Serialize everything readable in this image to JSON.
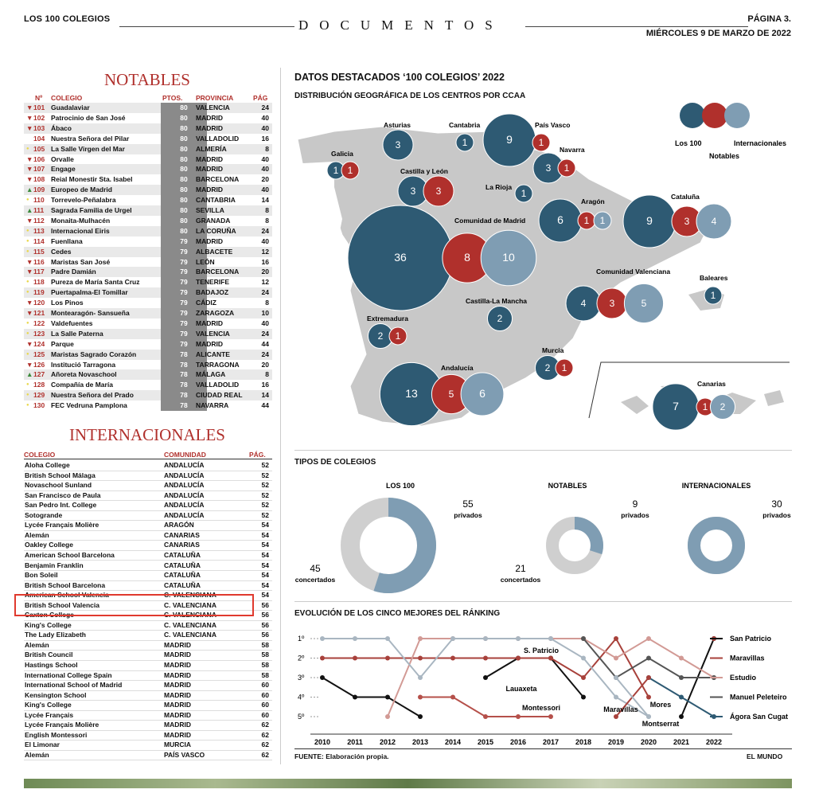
{
  "header": {
    "left": "LOS 100 COLEGIOS",
    "center": "DOCUMENTOS",
    "page": "PÁGINA 3.",
    "date": "MIÉRCOLES 9 DE MARZO DE 2022"
  },
  "notables": {
    "title": "NOTABLES",
    "cols": [
      "Nº",
      "COLEGIO",
      "PTOS.",
      "PROVINCIA",
      "PÁG"
    ],
    "rows": [
      {
        "arrow": "down",
        "n": "101",
        "name": "Guadalaviar",
        "pts": "80",
        "prov": "VALENCIA",
        "pag": "24"
      },
      {
        "arrow": "down",
        "n": "102",
        "name": "Patrocinio de San José",
        "pts": "80",
        "prov": "MADRID",
        "pag": "40"
      },
      {
        "arrow": "down",
        "n": "103",
        "name": "Ábaco",
        "pts": "80",
        "prov": "MADRID",
        "pag": "40"
      },
      {
        "arrow": "",
        "n": "104",
        "name": "Nuestra Señora del Pilar",
        "pts": "80",
        "prov": "VALLADOLID",
        "pag": "16"
      },
      {
        "arrow": "dot",
        "n": "105",
        "name": "La Salle Virgen del Mar",
        "pts": "80",
        "prov": "ALMERÍA",
        "pag": "8"
      },
      {
        "arrow": "down",
        "n": "106",
        "name": "Orvalle",
        "pts": "80",
        "prov": "MADRID",
        "pag": "40"
      },
      {
        "arrow": "down",
        "n": "107",
        "name": "Engage",
        "pts": "80",
        "prov": "MADRID",
        "pag": "40"
      },
      {
        "arrow": "down",
        "n": "108",
        "name": "Reial Monestir Sta. Isabel",
        "pts": "80",
        "prov": "BARCELONA",
        "pag": "20"
      },
      {
        "arrow": "up",
        "n": "109",
        "name": "Europeo de Madrid",
        "pts": "80",
        "prov": "MADRID",
        "pag": "40"
      },
      {
        "arrow": "dot",
        "n": "110",
        "name": "Torrevelo-Peñalabra",
        "pts": "80",
        "prov": "CANTABRIA",
        "pag": "14"
      },
      {
        "arrow": "up",
        "n": "111",
        "name": "Sagrada Familia de Urgel",
        "pts": "80",
        "prov": "SEVILLA",
        "pag": "8"
      },
      {
        "arrow": "down",
        "n": "112",
        "name": "Monaita-Mulhacén",
        "pts": "80",
        "prov": "GRANADA",
        "pag": "8"
      },
      {
        "arrow": "dot",
        "n": "113",
        "name": "Internacional Eiris",
        "pts": "80",
        "prov": "LA CORUÑA",
        "pag": "24"
      },
      {
        "arrow": "dot",
        "n": "114",
        "name": "Fuenllana",
        "pts": "79",
        "prov": "MADRID",
        "pag": "40"
      },
      {
        "arrow": "dot",
        "n": "115",
        "name": "Cedes",
        "pts": "79",
        "prov": "ALBACETE",
        "pag": "12"
      },
      {
        "arrow": "down",
        "n": "116",
        "name": "Maristas San José",
        "pts": "79",
        "prov": "LEÓN",
        "pag": "16"
      },
      {
        "arrow": "down",
        "n": "117",
        "name": "Padre Damián",
        "pts": "79",
        "prov": "BARCELONA",
        "pag": "20"
      },
      {
        "arrow": "dot",
        "n": "118",
        "name": "Pureza de María Santa Cruz",
        "pts": "79",
        "prov": "TENERIFE",
        "pag": "12"
      },
      {
        "arrow": "dot",
        "n": "119",
        "name": "Puertapalma-El Tomillar",
        "pts": "79",
        "prov": "BADAJOZ",
        "pag": "24"
      },
      {
        "arrow": "down",
        "n": "120",
        "name": "Los Pinos",
        "pts": "79",
        "prov": "CÁDIZ",
        "pag": "8"
      },
      {
        "arrow": "down",
        "n": "121",
        "name": "Montearagón- Sansueña",
        "pts": "79",
        "prov": "ZARAGOZA",
        "pag": "10"
      },
      {
        "arrow": "dot",
        "n": "122",
        "name": "Valdefuentes",
        "pts": "79",
        "prov": "MADRID",
        "pag": "40"
      },
      {
        "arrow": "dot",
        "n": "123",
        "name": "La Salle Paterna",
        "pts": "79",
        "prov": "VALENCIA",
        "pag": "24"
      },
      {
        "arrow": "down",
        "n": "124",
        "name": "Parque",
        "pts": "79",
        "prov": "MADRID",
        "pag": "44"
      },
      {
        "arrow": "dot",
        "n": "125",
        "name": "Maristas Sagrado Corazón",
        "pts": "78",
        "prov": "ALICANTE",
        "pag": "24"
      },
      {
        "arrow": "down",
        "n": "126",
        "name": "Institució Tarragona",
        "pts": "78",
        "prov": "TARRAGONA",
        "pag": "20"
      },
      {
        "arrow": "up",
        "n": "127",
        "name": "Añoreta Novaschool",
        "pts": "78",
        "prov": "MÁLAGA",
        "pag": "8"
      },
      {
        "arrow": "dot",
        "n": "128",
        "name": "Compañía de María",
        "pts": "78",
        "prov": "VALLADOLID",
        "pag": "16"
      },
      {
        "arrow": "dot",
        "n": "129",
        "name": "Nuestra Señora del Prado",
        "pts": "78",
        "prov": "CIUDAD REAL",
        "pag": "14"
      },
      {
        "arrow": "dot",
        "n": "130",
        "name": "FEC Vedruna Pamplona",
        "pts": "78",
        "prov": "NAVARRA",
        "pag": "44"
      }
    ]
  },
  "internacionales": {
    "title": "INTERNACIONALES",
    "cols": [
      "COLEGIO",
      "COMUNIDAD",
      "PÁG."
    ],
    "rows": [
      {
        "name": "Aloha College",
        "com": "ANDALUCÍA",
        "pag": "52"
      },
      {
        "name": "British School Málaga",
        "com": "ANDALUCÍA",
        "pag": "52"
      },
      {
        "name": "Novaschool Sunland",
        "com": "ANDALUCÍA",
        "pag": "52"
      },
      {
        "name": "San Francisco de Paula",
        "com": "ANDALUCÍA",
        "pag": "52"
      },
      {
        "name": "San Pedro Int. College",
        "com": "ANDALUCÍA",
        "pag": "52"
      },
      {
        "name": "Sotogrande",
        "com": "ANDALUCÍA",
        "pag": "52"
      },
      {
        "name": "Lycée Français Molière",
        "com": "ARAGÓN",
        "pag": "54"
      },
      {
        "name": "Alemán",
        "com": "CANARIAS",
        "pag": "54"
      },
      {
        "name": "Oakley College",
        "com": "CANARIAS",
        "pag": "54"
      },
      {
        "name": "American School Barcelona",
        "com": "CATALUÑA",
        "pag": "54"
      },
      {
        "name": "Benjamin Franklin",
        "com": "CATALUÑA",
        "pag": "54"
      },
      {
        "name": "Bon Soleil",
        "com": "CATALUÑA",
        "pag": "54"
      },
      {
        "name": "British School Barcelona",
        "com": "CATALUÑA",
        "pag": "54"
      },
      {
        "name": "American School Valencia",
        "com": "C. VALENCIANA",
        "pag": "54"
      },
      {
        "name": "British School Valencia",
        "com": "C. VALENCIANA",
        "pag": "56"
      },
      {
        "name": "Caxton College",
        "com": "C. VALENCIANA",
        "pag": "56"
      },
      {
        "name": "King's College",
        "com": "C. VALENCIANA",
        "pag": "56"
      },
      {
        "name": "The Lady Elizabeth",
        "com": "C. VALENCIANA",
        "pag": "56"
      },
      {
        "name": "Alemán",
        "com": "MADRID",
        "pag": "58"
      },
      {
        "name": "British Council",
        "com": "MADRID",
        "pag": "58"
      },
      {
        "name": "Hastings School",
        "com": "MADRID",
        "pag": "58"
      },
      {
        "name": "International College Spain",
        "com": "MADRID",
        "pag": "58"
      },
      {
        "name": "International School of Madrid",
        "com": "MADRID",
        "pag": "60"
      },
      {
        "name": "Kensington School",
        "com": "MADRID",
        "pag": "60"
      },
      {
        "name": "King's College",
        "com": "MADRID",
        "pag": "60"
      },
      {
        "name": "Lycée Français",
        "com": "MADRID",
        "pag": "60"
      },
      {
        "name": "Lycée Français Molière",
        "com": "MADRID",
        "pag": "62"
      },
      {
        "name": "English Montessori",
        "com": "MADRID",
        "pag": "62"
      },
      {
        "name": "El Limonar",
        "com": "MURCIA",
        "pag": "62"
      },
      {
        "name": "Alemán",
        "com": "PAÍS VASCO",
        "pag": "62"
      }
    ]
  },
  "right": {
    "title": "DATOS DESTACADOS ‘100 COLEGIOS’ 2022",
    "map_title": "DISTRIBUCIÓN GEOGRÁFICA DE LOS CENTROS POR CCAA",
    "legend": {
      "los100": "Los 100",
      "notables": "Notables",
      "internacionales": "Internacionales"
    },
    "colors": {
      "los100": "#2e5a73",
      "notables": "#b0302c",
      "internacionales": "#7f9db3",
      "land": "#c8c8c8"
    },
    "regions": [
      {
        "name": "Asturias",
        "v": [
          "3"
        ]
      },
      {
        "name": "Cantabria",
        "v": [
          "1"
        ]
      },
      {
        "name": "País Vasco",
        "v": [
          "9",
          "1"
        ]
      },
      {
        "name": "Galicia",
        "v": [
          "1",
          "1"
        ]
      },
      {
        "name": "Navarra",
        "v": [
          "3",
          "1"
        ]
      },
      {
        "name": "Castilla y León",
        "v": [
          "3",
          "3"
        ]
      },
      {
        "name": "La Rioja",
        "v": [
          "1"
        ]
      },
      {
        "name": "Aragón",
        "v": [
          "6",
          "1",
          "1"
        ]
      },
      {
        "name": "Cataluña",
        "v": [
          "9",
          "3",
          "4"
        ]
      },
      {
        "name": "Comunidad de Madrid",
        "v": [
          "36",
          "8",
          "10"
        ]
      },
      {
        "name": "Comunidad Valenciana",
        "v": [
          "4",
          "3",
          "5"
        ]
      },
      {
        "name": "Baleares",
        "v": [
          "1"
        ]
      },
      {
        "name": "Castilla-La Mancha",
        "v": [
          "2"
        ]
      },
      {
        "name": "Extremadura",
        "v": [
          "2",
          "1"
        ]
      },
      {
        "name": "Murcia",
        "v": [
          "2",
          "1"
        ]
      },
      {
        "name": "Andalucía",
        "v": [
          "13",
          "5",
          "6"
        ]
      },
      {
        "name": "Canarias",
        "v": [
          "7",
          "1",
          "2"
        ]
      }
    ],
    "types_title": "TIPOS DE COLEGIOS",
    "donuts": [
      {
        "label": "LOS 100",
        "privados": 55,
        "concertados": 45,
        "priv_label": "privados",
        "conc_label": "concertados"
      },
      {
        "label": "NOTABLES",
        "privados": 9,
        "concertados": 21,
        "priv_label": "privados",
        "conc_label": "concertados"
      },
      {
        "label": "INTERNACIONALES",
        "privados": 30,
        "concertados": 0,
        "priv_label": "privados",
        "conc_label": ""
      }
    ],
    "evo_title": "EVOLUCIÓN DE LOS CINCO MEJORES DEL RÁNKING",
    "source": "FUENTE: Elaboración propia.",
    "brand": "EL MUNDO"
  },
  "chart_data": {
    "type": "line",
    "x": [
      "2010",
      "2011",
      "2012",
      "2013",
      "2014",
      "2015",
      "2016",
      "2017",
      "2018",
      "2019",
      "2020",
      "2021",
      "2022"
    ],
    "yticks": [
      "1º",
      "2º",
      "3º",
      "4º",
      "5º"
    ],
    "ylim": [
      1,
      5
    ],
    "series": [
      {
        "name": "San Patricio",
        "color": "#111111",
        "values": [
          3,
          4,
          4,
          5,
          null,
          3,
          2,
          2,
          4,
          null,
          null,
          5,
          1
        ]
      },
      {
        "name": "Maravillas",
        "color": "#a8413b",
        "values": [
          2,
          2,
          2,
          2,
          2,
          2,
          2,
          2,
          3,
          1,
          4,
          null,
          1
        ]
      },
      {
        "name": "Estudio",
        "color": "#d29a95",
        "values": [
          null,
          null,
          5,
          1,
          1,
          1,
          1,
          1,
          1,
          2,
          1,
          2,
          3
        ]
      },
      {
        "name": "Manuel Peleteiro",
        "color": "#555555",
        "values": [
          null,
          null,
          null,
          null,
          null,
          null,
          null,
          null,
          1,
          3,
          2,
          3,
          3
        ]
      },
      {
        "name": "Ágora San Cugat",
        "color": "#2e5a73",
        "values": [
          null,
          null,
          null,
          null,
          null,
          null,
          null,
          null,
          null,
          null,
          3,
          4,
          5
        ]
      },
      {
        "name": "Lauaxeta",
        "color": "#a9b6c1",
        "values": [
          1,
          1,
          1,
          3,
          1,
          1,
          1,
          1,
          2,
          4,
          5,
          null,
          null
        ]
      },
      {
        "name": "Montessori",
        "color": "#b5504a",
        "values": [
          null,
          null,
          null,
          4,
          4,
          5,
          5,
          5,
          null,
          null,
          null,
          null,
          null
        ]
      },
      {
        "name": "Mores",
        "color": "#a8413b",
        "values": [
          null,
          null,
          null,
          null,
          null,
          null,
          null,
          null,
          null,
          5,
          3,
          null,
          null
        ]
      },
      {
        "name": "Montserrat",
        "color": "#a9b6c1",
        "values": [
          null,
          null,
          null,
          null,
          null,
          null,
          null,
          null,
          null,
          3,
          5,
          null,
          null
        ]
      }
    ],
    "annotations": [
      "S. Patricio",
      "Lauaxeta",
      "Montessori",
      "Maravillas",
      "Mores",
      "Montserrat"
    ]
  }
}
